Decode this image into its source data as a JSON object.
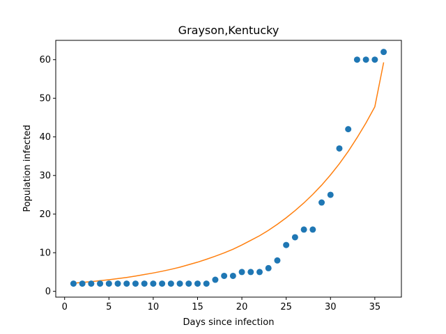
{
  "chart_data": {
    "type": "scatter",
    "title": "Grayson,Kentucky",
    "xlabel": "Days since infection",
    "ylabel": "Population infected",
    "xlim": [
      -1,
      38
    ],
    "ylim": [
      -1.5,
      65
    ],
    "xticks": [
      0,
      5,
      10,
      15,
      20,
      25,
      30,
      35
    ],
    "yticks": [
      0,
      10,
      20,
      30,
      40,
      50,
      60
    ],
    "grid": false,
    "series": [
      {
        "kind": "scatter",
        "color": "#1f77b4",
        "x": [
          1,
          2,
          3,
          4,
          5,
          6,
          7,
          8,
          9,
          10,
          11,
          12,
          13,
          14,
          15,
          16,
          17,
          18,
          19,
          20,
          21,
          22,
          23,
          24,
          25,
          26,
          27,
          28,
          29,
          30,
          31,
          32,
          33,
          34,
          35,
          36
        ],
        "y": [
          2,
          2,
          2,
          2,
          2,
          2,
          2,
          2,
          2,
          2,
          2,
          2,
          2,
          2,
          2,
          2,
          3,
          4,
          4,
          5,
          5,
          5,
          6,
          8,
          12,
          14,
          16,
          16,
          23,
          25,
          37,
          42,
          60,
          60,
          60,
          62
        ]
      },
      {
        "kind": "line",
        "color": "#ff7f0e",
        "x": [
          1,
          2,
          3,
          4,
          5,
          6,
          7,
          8,
          9,
          10,
          11,
          12,
          13,
          14,
          15,
          16,
          17,
          18,
          19,
          20,
          21,
          22,
          23,
          24,
          25,
          26,
          27,
          28,
          29,
          30,
          31,
          32,
          33,
          34,
          35,
          36
        ],
        "y": [
          2.1,
          2.3,
          2.5,
          2.75,
          3.0,
          3.3,
          3.6,
          3.95,
          4.35,
          4.75,
          5.2,
          5.7,
          6.25,
          6.9,
          7.55,
          8.3,
          9.1,
          9.95,
          10.9,
          12.0,
          13.2,
          14.4,
          15.8,
          17.35,
          19.05,
          20.9,
          22.9,
          25.1,
          27.5,
          30.15,
          33.05,
          36.25,
          39.8,
          43.6,
          47.8,
          59.3
        ]
      }
    ]
  }
}
